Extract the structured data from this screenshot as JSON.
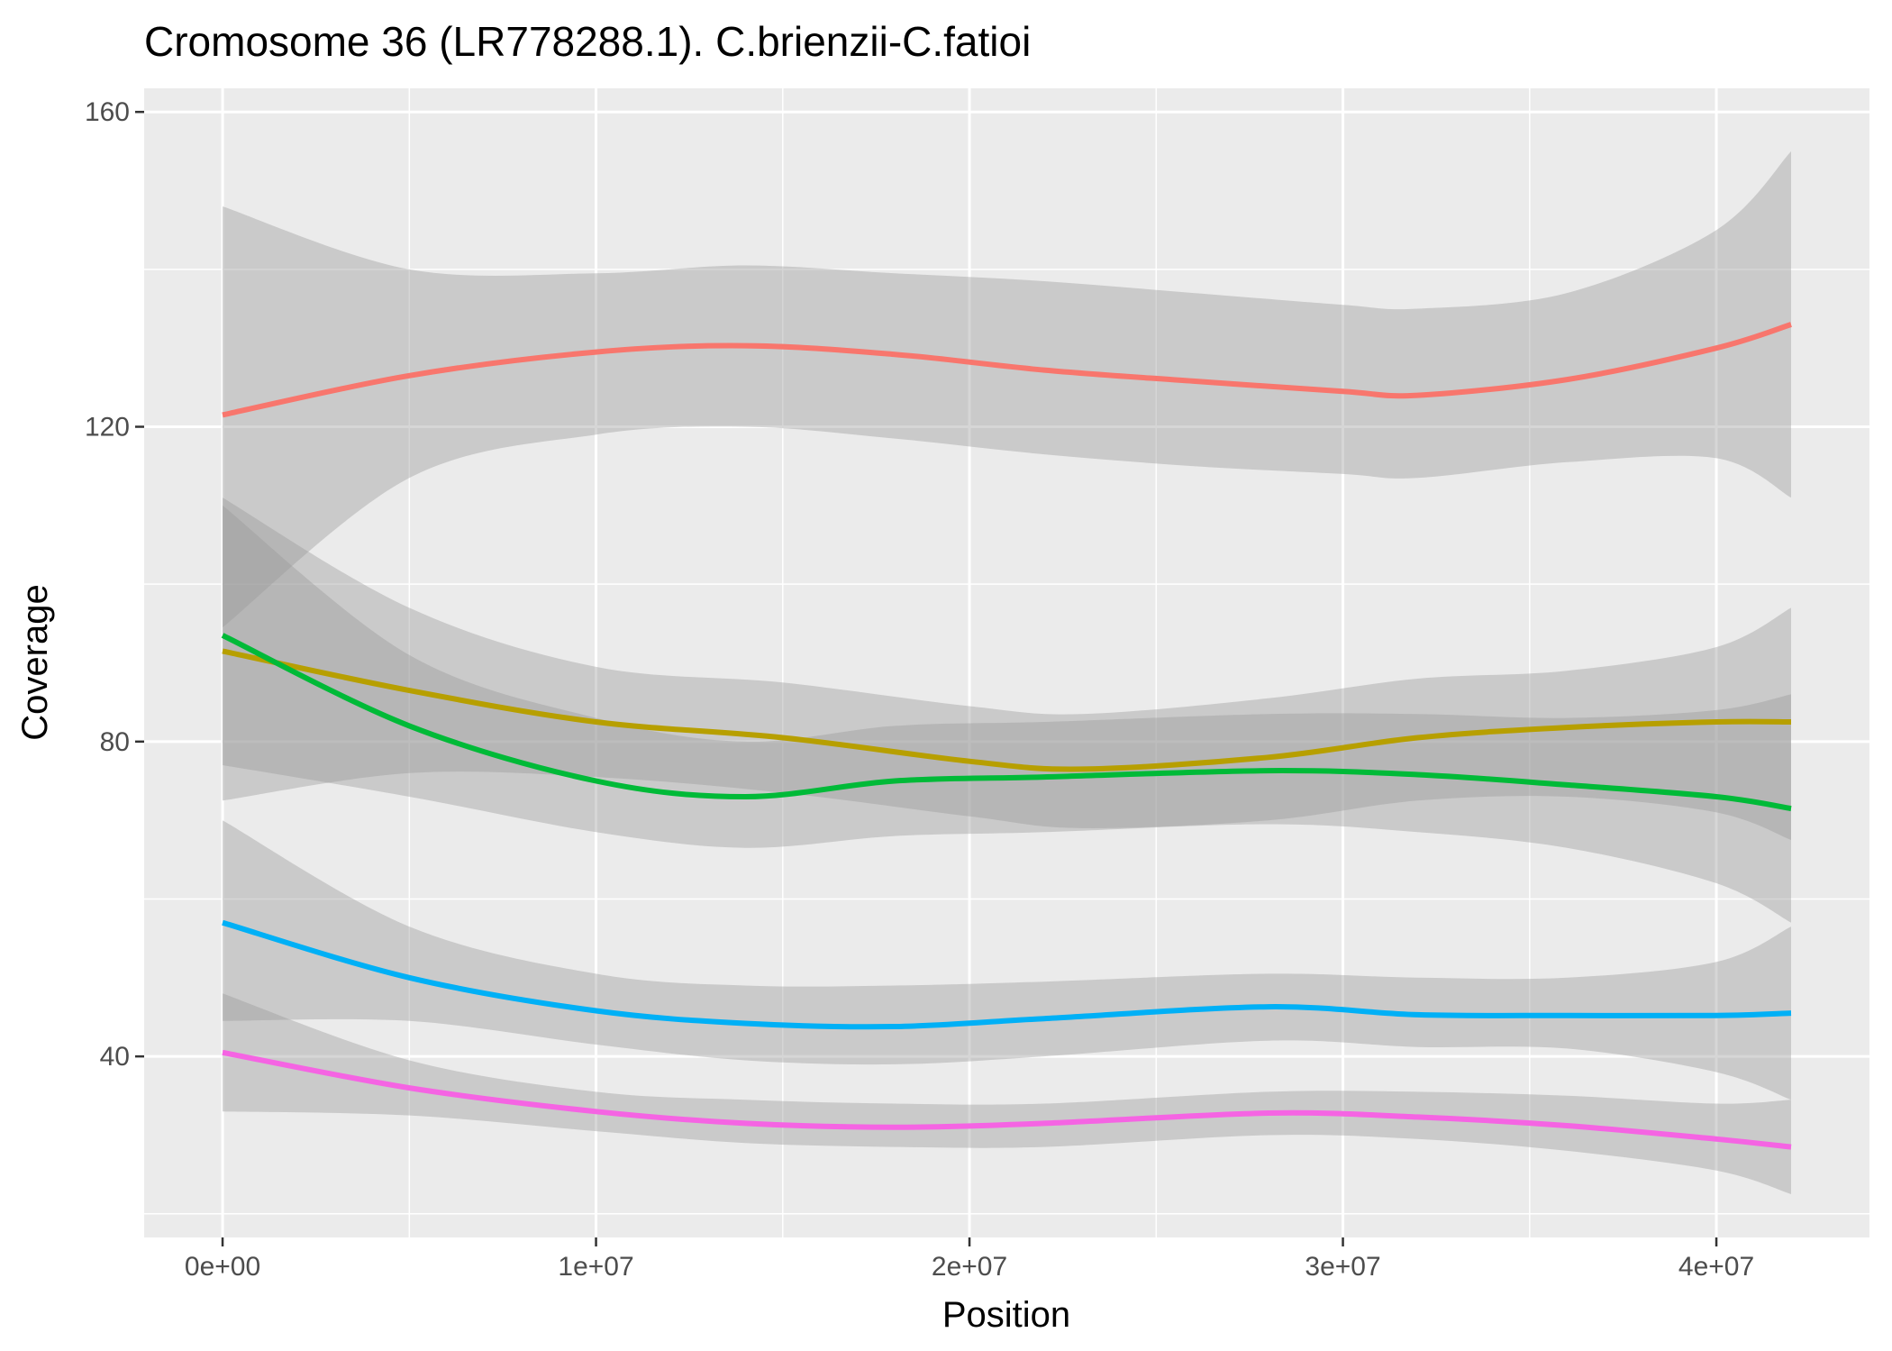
{
  "chart_data": {
    "type": "line",
    "title": "Cromosome 36 (LR778288.1). C.brienzii-C.fatioi",
    "xlabel": "Position",
    "ylabel": "Coverage",
    "xlim": [
      -2100000,
      44100000
    ],
    "ylim": [
      17,
      163
    ],
    "x_ticks": [
      0,
      10000000,
      20000000,
      30000000,
      40000000
    ],
    "x_tick_labels": [
      "0e+00",
      "1e+07",
      "2e+07",
      "3e+07",
      "4e+07"
    ],
    "y_ticks": [
      40,
      80,
      120,
      160
    ],
    "y_tick_labels": [
      "40",
      "80",
      "120",
      "160"
    ],
    "grid": true,
    "legend": "none",
    "smoothed_with_confidence_band": true,
    "series": [
      {
        "color": "#F8766D",
        "x": [
          0,
          5000000,
          10000000,
          14000000,
          18000000,
          22000000,
          26000000,
          30000000,
          32000000,
          36000000,
          40000000,
          42000000
        ],
        "y": [
          121.5,
          126.5,
          129.5,
          130.3,
          129.2,
          127.2,
          125.8,
          124.5,
          124,
          126,
          130,
          133
        ],
        "upper": [
          148,
          140,
          139.5,
          140.5,
          139.5,
          138.5,
          137,
          135.5,
          135,
          137,
          145,
          155
        ],
        "lower": [
          94.5,
          113.5,
          119,
          120,
          118.5,
          116.5,
          115,
          114,
          113.5,
          115.5,
          116,
          111
        ]
      },
      {
        "color": "#B79F00",
        "x": [
          0,
          5000000,
          10000000,
          15000000,
          20000000,
          23000000,
          28000000,
          32000000,
          36000000,
          40000000,
          42000000
        ],
        "y": [
          91.5,
          86.5,
          82.5,
          80.5,
          77.5,
          76.5,
          78,
          80.5,
          81.8,
          82.5,
          82.5
        ],
        "upper": [
          111,
          97,
          89.5,
          87.5,
          84.5,
          83.5,
          85.5,
          88,
          89,
          92,
          97
        ],
        "lower": [
          72.5,
          76,
          75.5,
          73.5,
          70.5,
          69,
          70,
          72.5,
          73,
          71,
          67.5
        ]
      },
      {
        "color": "#00BA38",
        "x": [
          0,
          5000000,
          10000000,
          14000000,
          18000000,
          22000000,
          28000000,
          32000000,
          36000000,
          40000000,
          42000000
        ],
        "y": [
          93.5,
          82,
          75,
          73,
          75,
          75.5,
          76.3,
          75.8,
          74.5,
          73,
          71.5
        ],
        "upper": [
          110,
          91,
          83,
          80,
          82,
          82.5,
          83.5,
          83.5,
          83,
          84,
          86
        ],
        "lower": [
          77,
          73,
          68.5,
          66.5,
          68,
          68.5,
          69.5,
          68.5,
          66.5,
          62,
          57
        ]
      },
      {
        "color": "#00B0F6",
        "x": [
          0,
          5000000,
          10000000,
          14000000,
          18000000,
          22000000,
          28000000,
          32000000,
          36000000,
          40000000,
          42000000
        ],
        "y": [
          57,
          50,
          45.8,
          44.2,
          43.8,
          44.8,
          46.3,
          45.3,
          45.2,
          45.2,
          45.5
        ],
        "upper": [
          70,
          56.5,
          50.5,
          49,
          49,
          49.5,
          50.5,
          50,
          50,
          52,
          56.5
        ],
        "lower": [
          44.5,
          44.5,
          41.5,
          39.5,
          39,
          40,
          42,
          41.2,
          41,
          38,
          34.5
        ]
      },
      {
        "color": "#F564E3",
        "x": [
          0,
          5000000,
          10000000,
          14000000,
          18000000,
          22000000,
          28000000,
          32000000,
          36000000,
          40000000,
          42000000
        ],
        "y": [
          40.5,
          36,
          33,
          31.5,
          31,
          31.5,
          32.8,
          32.3,
          31.2,
          29.5,
          28.5
        ],
        "upper": [
          48,
          39.5,
          35.5,
          34.5,
          34,
          34,
          35.5,
          35.5,
          35,
          34,
          34.5
        ],
        "lower": [
          33,
          32.5,
          30.5,
          29,
          28.5,
          28.5,
          30,
          29.5,
          28,
          25.5,
          22.5
        ]
      }
    ]
  }
}
